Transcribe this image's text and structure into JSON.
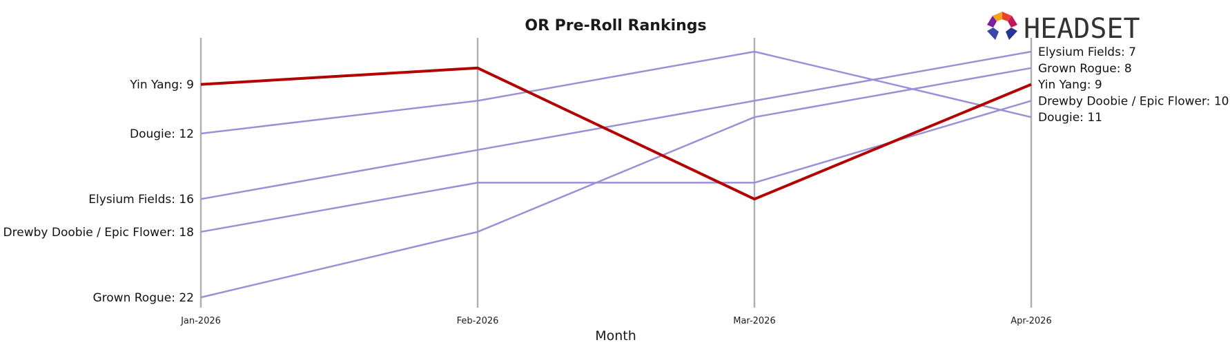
{
  "chart_data": {
    "type": "line",
    "title": "OR Pre-Roll Rankings",
    "xlabel": "Month",
    "ylabel": "",
    "categories": [
      "Jan-2026",
      "Feb-2026",
      "Mar-2026",
      "Apr-2026"
    ],
    "y_inverted": true,
    "ylim": [
      6,
      22
    ],
    "grid": "vertical lines at each month",
    "highlight_color": "#b30000",
    "other_color": "#9b8fd6",
    "axis_color": "#b0b0b0",
    "series": [
      {
        "name": "Yin Yang",
        "values": [
          9,
          8,
          16,
          9
        ],
        "highlight": true
      },
      {
        "name": "Dougie",
        "values": [
          12,
          10,
          7,
          11
        ],
        "highlight": false
      },
      {
        "name": "Elysium Fields",
        "values": [
          16,
          13,
          10,
          7
        ],
        "highlight": false
      },
      {
        "name": "Drewby Doobie / Epic Flower",
        "values": [
          18,
          15,
          15,
          10
        ],
        "highlight": false
      },
      {
        "name": "Grown Rogue",
        "values": [
          22,
          18,
          11,
          8
        ],
        "highlight": false
      }
    ],
    "left_labels": [
      {
        "series": "Yin Yang",
        "text": "Yin Yang: 9"
      },
      {
        "series": "Dougie",
        "text": "Dougie: 12"
      },
      {
        "series": "Elysium Fields",
        "text": "Elysium Fields: 16"
      },
      {
        "series": "Drewby Doobie / Epic Flower",
        "text": "Drewby Doobie / Epic Flower: 18"
      },
      {
        "series": "Grown Rogue",
        "text": "Grown Rogue: 22"
      }
    ],
    "right_labels": [
      {
        "series": "Elysium Fields",
        "text": "Elysium Fields: 7"
      },
      {
        "series": "Grown Rogue",
        "text": "Grown Rogue: 8"
      },
      {
        "series": "Yin Yang",
        "text": "Yin Yang: 9"
      },
      {
        "series": "Drewby Doobie / Epic Flower",
        "text": "Drewby Doobie / Epic Flower: 10"
      },
      {
        "series": "Dougie",
        "text": "Dougie: 11"
      }
    ]
  },
  "logo": {
    "text": "HEADSET",
    "colors": [
      "#e8432e",
      "#f7a21b",
      "#c2185b",
      "#7b1fa2",
      "#283593",
      "#3949ab"
    ]
  }
}
